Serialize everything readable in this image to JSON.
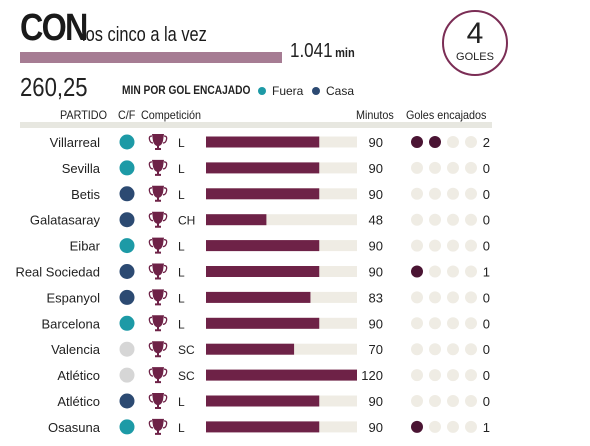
{
  "header": {
    "title": "CON",
    "subtitle": "los cinco a la vez",
    "total_minutes": "1.041",
    "total_unit": "min",
    "avg_value": "260,25",
    "avg_label": "MIN POR GOL ENCAJADO",
    "badge_number": "4",
    "badge_label": "GOLES"
  },
  "legend": {
    "away": {
      "label": "Fuera",
      "color": "#1d9aa6"
    },
    "home": {
      "label": "Casa",
      "color": "#2c4a72"
    }
  },
  "columns": {
    "match": "PARTIDO",
    "cf": "C/F",
    "competition": "Competición",
    "minutes": "Minutos",
    "goals": "Goles encajados"
  },
  "colors": {
    "bar": "#6e2247",
    "bar_track": "#efece4",
    "goal_dot": "#4a1433",
    "goal_empty": "#efece4",
    "neutral": "#d6d6d6",
    "row_band": "#f2f1ec"
  },
  "chart_data": {
    "type": "bar",
    "xmax": 120,
    "goal_slots": 4,
    "rows": [
      {
        "team": "Villarreal",
        "venue": "away",
        "competition": "L",
        "minutes": 90,
        "goals": 2
      },
      {
        "team": "Sevilla",
        "venue": "away",
        "competition": "L",
        "minutes": 90,
        "goals": 0
      },
      {
        "team": "Betis",
        "venue": "home",
        "competition": "L",
        "minutes": 90,
        "goals": 0
      },
      {
        "team": "Galatasaray",
        "venue": "home",
        "competition": "CH",
        "minutes": 48,
        "goals": 0
      },
      {
        "team": "Eibar",
        "venue": "away",
        "competition": "L",
        "minutes": 90,
        "goals": 0
      },
      {
        "team": "Real Sociedad",
        "venue": "home",
        "competition": "L",
        "minutes": 90,
        "goals": 1
      },
      {
        "team": "Espanyol",
        "venue": "home",
        "competition": "L",
        "minutes": 83,
        "goals": 0
      },
      {
        "team": "Barcelona",
        "venue": "away",
        "competition": "L",
        "minutes": 90,
        "goals": 0
      },
      {
        "team": "Valencia",
        "venue": "neutral",
        "competition": "SC",
        "minutes": 70,
        "goals": 0
      },
      {
        "team": "Atlético",
        "venue": "neutral",
        "competition": "SC",
        "minutes": 120,
        "goals": 0
      },
      {
        "team": "Atlético",
        "venue": "home",
        "competition": "L",
        "minutes": 90,
        "goals": 0
      },
      {
        "team": "Osasuna",
        "venue": "away",
        "competition": "L",
        "minutes": 90,
        "goals": 1
      }
    ]
  }
}
